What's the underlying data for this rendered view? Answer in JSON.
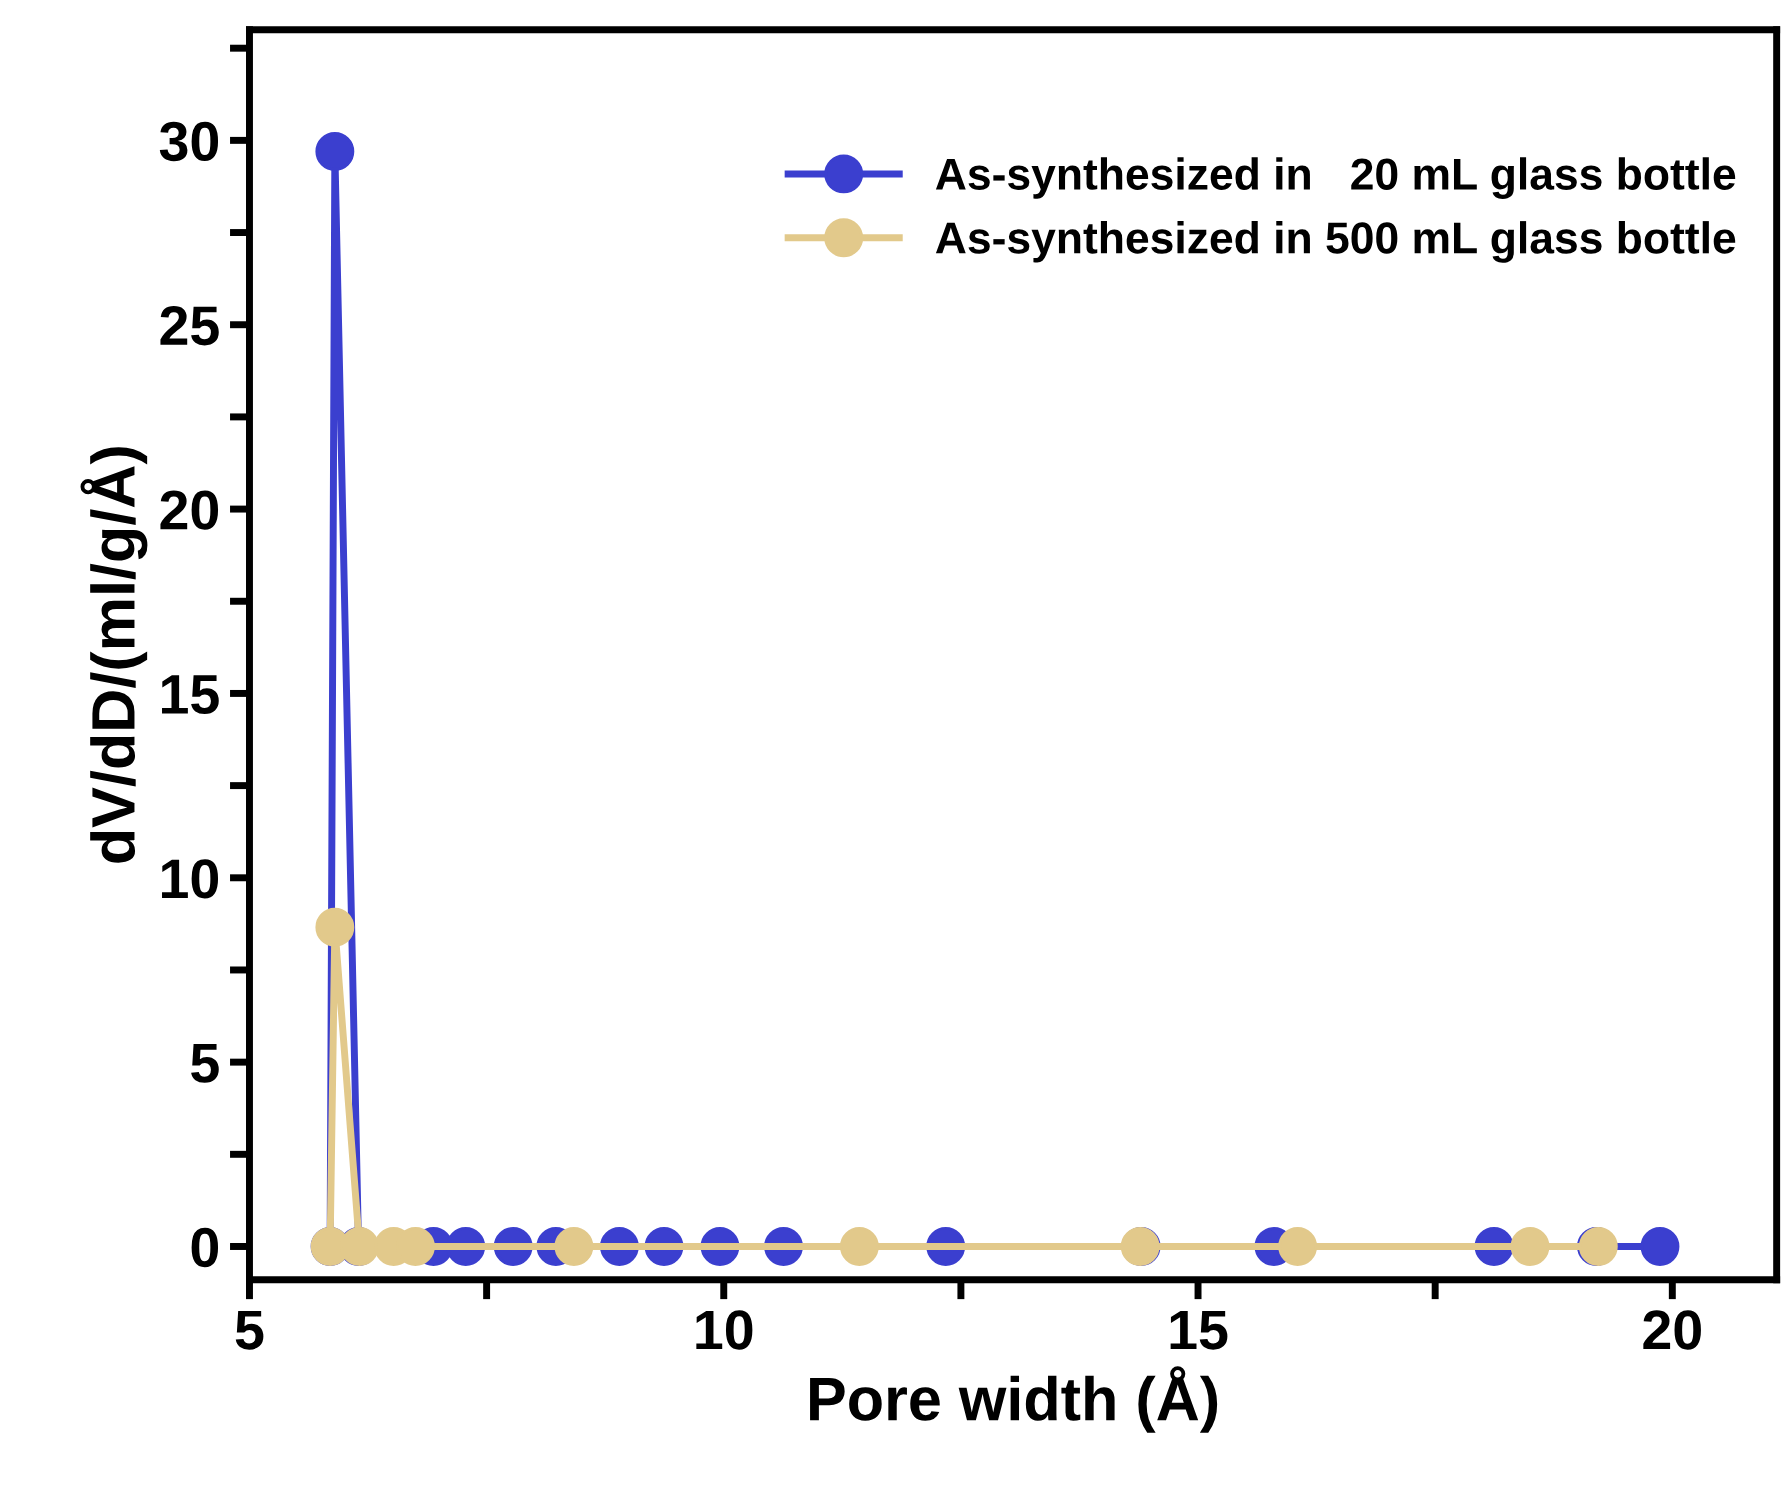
{
  "chart_data": {
    "type": "line",
    "xlabel": "Pore width (Å)",
    "ylabel": "dV/dD/(ml/g/Å)",
    "xlim": [
      5,
      21.1
    ],
    "ylim": [
      -0.9,
      33
    ],
    "xticks": [
      5,
      {
        "value": 7.5,
        "label": null
      },
      10,
      {
        "value": 12.5,
        "label": null
      },
      15,
      {
        "value": 17.5,
        "label": null
      },
      20
    ],
    "yticks": [
      0,
      {
        "value": 2.5,
        "label": null
      },
      5,
      {
        "value": 7.5,
        "label": null
      },
      10,
      {
        "value": 12.5,
        "label": null
      },
      15,
      {
        "value": 17.5,
        "label": null
      },
      20,
      {
        "value": 22.5,
        "label": null
      },
      25,
      {
        "value": 27.5,
        "label": null
      },
      30,
      {
        "value": 32.5,
        "label": null
      }
    ],
    "marker": "circle",
    "line_style": "solid",
    "legend": "top right",
    "grid": false,
    "series": [
      {
        "name": "As-synthesized in   20 mL glass bottle",
        "color": "#3b3fcf",
        "x": [
          5.85,
          5.9,
          6.15,
          6.94,
          7.28,
          7.78,
          8.23,
          8.9,
          9.37,
          9.96,
          10.63,
          12.34,
          14.4,
          15.8,
          18.12,
          19.2,
          19.87
        ],
        "values": [
          0,
          29.7,
          0,
          0,
          0,
          0,
          0,
          0,
          0,
          0,
          0,
          0,
          0,
          0,
          0,
          0,
          0
        ]
      },
      {
        "name": "As-synthesized in 500 mL glass bottle",
        "color": "#e2c98b",
        "x": [
          5.85,
          5.9,
          6.16,
          6.52,
          6.75,
          8.42,
          11.43,
          14.39,
          16.05,
          18.5,
          19.22
        ],
        "values": [
          0,
          8.66,
          0,
          0,
          0,
          0,
          0,
          0,
          0,
          0,
          0
        ]
      }
    ]
  }
}
